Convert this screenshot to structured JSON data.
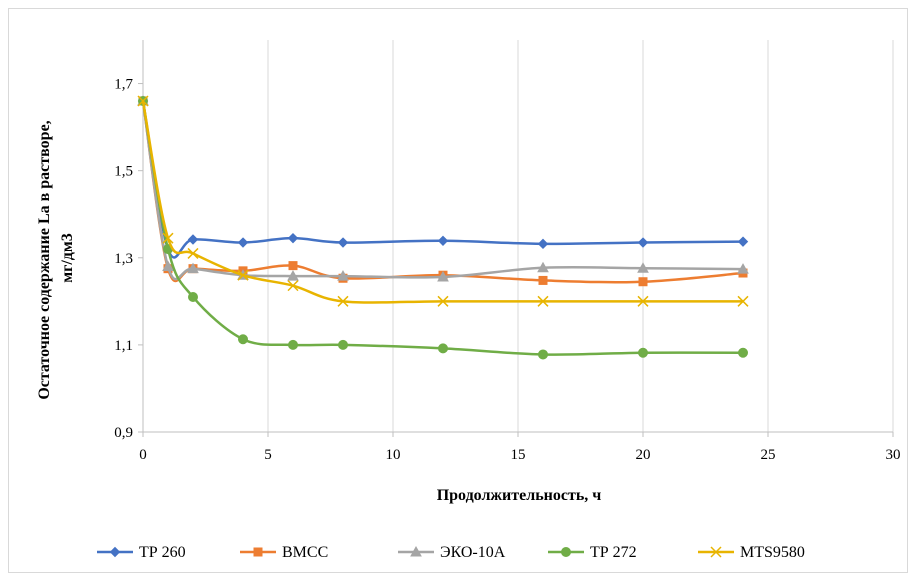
{
  "chart_data": {
    "type": "line",
    "title": "",
    "xlabel": "Продолжительность, ч",
    "ylabel": "Остаточное содержание La  в растворе, мг/дм3",
    "ylabel_lines": [
      "Остаточное содержание La  в растворе,",
      "мг/дм3"
    ],
    "xlim": [
      0,
      30
    ],
    "ylim": [
      0.9,
      1.8
    ],
    "x_ticks": [
      0,
      5,
      10,
      15,
      20,
      25,
      30
    ],
    "x_tick_labels": [
      "0",
      "5",
      "10",
      "15",
      "20",
      "25",
      "30"
    ],
    "y_ticks": [
      0.9,
      1.1,
      1.3,
      1.5,
      1.7
    ],
    "y_tick_labels": [
      "0,9",
      "1,1",
      "1,3",
      "1,5",
      "1,7"
    ],
    "grid": "vertical",
    "legend_position": "bottom",
    "smooth": true,
    "series": [
      {
        "name": "ТР 260",
        "color": "#4472C4",
        "marker": "diamond",
        "x": [
          0,
          1,
          2,
          4,
          6,
          8,
          12,
          16,
          20,
          24
        ],
        "y": [
          1.66,
          1.32,
          1.342,
          1.335,
          1.345,
          1.335,
          1.339,
          1.332,
          1.335,
          1.337
        ]
      },
      {
        "name": "ВМСС",
        "color": "#ED7D31",
        "marker": "square",
        "x": [
          0,
          1,
          2,
          4,
          6,
          8,
          12,
          16,
          20,
          24
        ],
        "y": [
          1.66,
          1.275,
          1.275,
          1.27,
          1.282,
          1.253,
          1.26,
          1.248,
          1.245,
          1.265
        ]
      },
      {
        "name": "ЭКО-10А",
        "color": "#A5A5A5",
        "marker": "triangle",
        "x": [
          0,
          1,
          2,
          4,
          6,
          8,
          12,
          16,
          20,
          24
        ],
        "y": [
          1.66,
          1.28,
          1.275,
          1.26,
          1.258,
          1.258,
          1.256,
          1.277,
          1.276,
          1.274
        ]
      },
      {
        "name": "ТР 272",
        "color": "#70AD47",
        "marker": "circle",
        "x": [
          0,
          1,
          2,
          4,
          6,
          8,
          12,
          16,
          20,
          24
        ],
        "y": [
          1.66,
          1.32,
          1.21,
          1.113,
          1.1,
          1.1,
          1.092,
          1.078,
          1.082,
          1.082
        ]
      },
      {
        "name": "MTS9580",
        "color": "#E8B400",
        "marker": "x",
        "x": [
          0,
          1,
          2,
          4,
          6,
          8,
          12,
          16,
          20,
          24
        ],
        "y": [
          1.66,
          1.345,
          1.31,
          1.26,
          1.236,
          1.2,
          1.2,
          1.2,
          1.2,
          1.2
        ]
      }
    ]
  }
}
